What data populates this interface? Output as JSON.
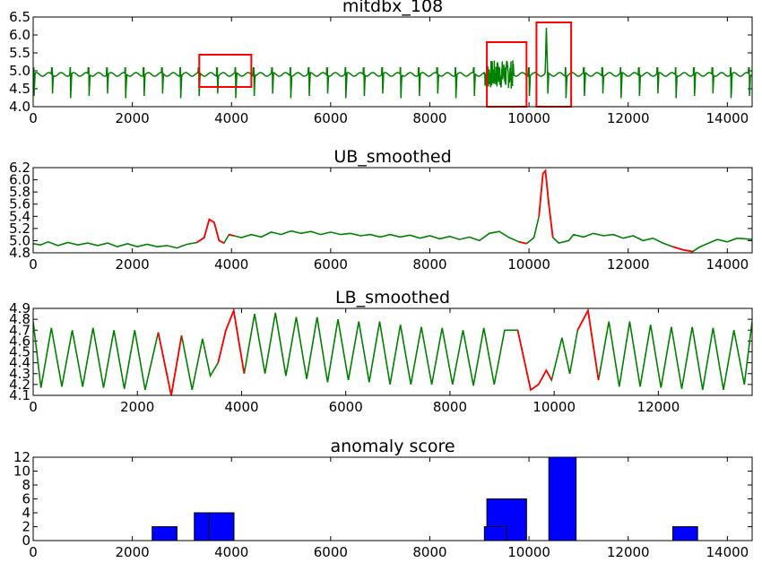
{
  "chart_data": [
    {
      "type": "line",
      "title": "mitdbx_108",
      "xlim": [
        0,
        14500
      ],
      "ylim": [
        4.0,
        6.5
      ],
      "xticks": [
        0,
        2000,
        4000,
        6000,
        8000,
        10000,
        12000,
        14000
      ],
      "yticks": [
        4.0,
        4.5,
        5.0,
        5.5,
        6.0,
        6.5
      ],
      "series": [
        {
          "color": "#008000",
          "baseline": 4.9,
          "beat_period": 370,
          "beat_peak": 5.08,
          "beat_trough": 4.2,
          "noise_region": [
            9100,
            9700
          ],
          "spike": {
            "x": 10350,
            "y": 6.2
          }
        }
      ],
      "annotations": [
        {
          "shape": "rect",
          "color": "#ff0000",
          "x": [
            3350,
            4400
          ],
          "y": [
            4.55,
            5.45
          ]
        },
        {
          "shape": "rect",
          "color": "#ff0000",
          "x": [
            9150,
            9950
          ],
          "y": [
            4.0,
            5.8
          ]
        },
        {
          "shape": "rect",
          "color": "#ff0000",
          "x": [
            10150,
            10850
          ],
          "y": [
            4.0,
            6.35
          ]
        }
      ]
    },
    {
      "type": "line",
      "title": "UB_smoothed",
      "xlim": [
        0,
        14500
      ],
      "ylim": [
        4.8,
        6.2
      ],
      "xticks": [
        0,
        2000,
        4000,
        6000,
        8000,
        10000,
        12000,
        14000
      ],
      "yticks": [
        4.8,
        5.0,
        5.2,
        5.4,
        5.6,
        5.8,
        6.0,
        6.2
      ],
      "points": [
        [
          0,
          4.95
        ],
        [
          150,
          4.93
        ],
        [
          300,
          4.98
        ],
        [
          500,
          4.92
        ],
        [
          700,
          4.97
        ],
        [
          900,
          4.93
        ],
        [
          1100,
          4.96
        ],
        [
          1300,
          4.92
        ],
        [
          1500,
          4.96
        ],
        [
          1700,
          4.9
        ],
        [
          1900,
          4.95
        ],
        [
          2100,
          4.9
        ],
        [
          2300,
          4.94
        ],
        [
          2500,
          4.9
        ],
        [
          2700,
          4.92
        ],
        [
          2900,
          4.88
        ],
        [
          3100,
          4.94
        ],
        [
          3300,
          4.97
        ],
        [
          3450,
          5.05
        ],
        [
          3550,
          5.35
        ],
        [
          3650,
          5.3
        ],
        [
          3750,
          5.0
        ],
        [
          3850,
          4.96
        ],
        [
          3950,
          5.1
        ],
        [
          4050,
          5.08
        ],
        [
          4200,
          5.05
        ],
        [
          4400,
          5.1
        ],
        [
          4600,
          5.06
        ],
        [
          4800,
          5.14
        ],
        [
          5000,
          5.1
        ],
        [
          5200,
          5.16
        ],
        [
          5400,
          5.12
        ],
        [
          5600,
          5.15
        ],
        [
          5800,
          5.1
        ],
        [
          6000,
          5.14
        ],
        [
          6200,
          5.1
        ],
        [
          6400,
          5.12
        ],
        [
          6600,
          5.08
        ],
        [
          6800,
          5.1
        ],
        [
          7000,
          5.06
        ],
        [
          7200,
          5.1
        ],
        [
          7400,
          5.06
        ],
        [
          7600,
          5.09
        ],
        [
          7800,
          5.04
        ],
        [
          8000,
          5.08
        ],
        [
          8200,
          5.03
        ],
        [
          8400,
          5.07
        ],
        [
          8600,
          5.02
        ],
        [
          8800,
          5.06
        ],
        [
          9000,
          5.0
        ],
        [
          9200,
          5.12
        ],
        [
          9400,
          5.15
        ],
        [
          9600,
          5.05
        ],
        [
          9800,
          4.98
        ],
        [
          9950,
          4.95
        ],
        [
          10100,
          5.05
        ],
        [
          10200,
          5.4
        ],
        [
          10280,
          6.1
        ],
        [
          10330,
          6.15
        ],
        [
          10400,
          5.6
        ],
        [
          10480,
          5.05
        ],
        [
          10600,
          4.96
        ],
        [
          10800,
          5.0
        ],
        [
          10900,
          5.1
        ],
        [
          11100,
          5.06
        ],
        [
          11300,
          5.12
        ],
        [
          11500,
          5.08
        ],
        [
          11700,
          5.1
        ],
        [
          11900,
          5.04
        ],
        [
          12100,
          5.08
        ],
        [
          12300,
          5.0
        ],
        [
          12500,
          5.04
        ],
        [
          12700,
          4.96
        ],
        [
          12900,
          4.9
        ],
        [
          13100,
          4.85
        ],
        [
          13300,
          4.82
        ],
        [
          13450,
          4.9
        ],
        [
          13600,
          4.95
        ],
        [
          13800,
          5.02
        ],
        [
          14000,
          4.98
        ],
        [
          14200,
          5.04
        ],
        [
          14500,
          5.02
        ]
      ],
      "highlight_ranges": [
        [
          3300,
          3900
        ],
        [
          3900,
          4100
        ],
        [
          9750,
          10000
        ],
        [
          10150,
          10550
        ],
        [
          12900,
          13400
        ]
      ],
      "colors": {
        "normal": "#008000",
        "anomaly": "#ff0000"
      }
    },
    {
      "type": "line",
      "title": "LB_smoothed",
      "xlim": [
        0,
        13800
      ],
      "ylim": [
        4.1,
        4.9
      ],
      "xticks": [
        0,
        2000,
        4000,
        6000,
        8000,
        10000,
        12000
      ],
      "yticks": [
        4.1,
        4.2,
        4.3,
        4.4,
        4.5,
        4.6,
        4.7,
        4.8,
        4.9
      ],
      "points": [
        [
          0,
          4.78
        ],
        [
          150,
          4.17
        ],
        [
          350,
          4.72
        ],
        [
          550,
          4.18
        ],
        [
          750,
          4.7
        ],
        [
          950,
          4.18
        ],
        [
          1150,
          4.72
        ],
        [
          1350,
          4.17
        ],
        [
          1550,
          4.7
        ],
        [
          1750,
          4.16
        ],
        [
          1950,
          4.7
        ],
        [
          2150,
          4.15
        ],
        [
          2400,
          4.68
        ],
        [
          2650,
          4.1
        ],
        [
          2850,
          4.65
        ],
        [
          3050,
          4.15
        ],
        [
          3250,
          4.62
        ],
        [
          3400,
          4.28
        ],
        [
          3550,
          4.4
        ],
        [
          3700,
          4.7
        ],
        [
          3850,
          4.88
        ],
        [
          4050,
          4.3
        ],
        [
          4250,
          4.85
        ],
        [
          4450,
          4.3
        ],
        [
          4650,
          4.86
        ],
        [
          4850,
          4.28
        ],
        [
          5050,
          4.82
        ],
        [
          5250,
          4.25
        ],
        [
          5450,
          4.82
        ],
        [
          5650,
          4.22
        ],
        [
          5850,
          4.8
        ],
        [
          6050,
          4.24
        ],
        [
          6250,
          4.78
        ],
        [
          6450,
          4.22
        ],
        [
          6650,
          4.78
        ],
        [
          6850,
          4.2
        ],
        [
          7050,
          4.75
        ],
        [
          7250,
          4.2
        ],
        [
          7450,
          4.73
        ],
        [
          7650,
          4.2
        ],
        [
          7850,
          4.72
        ],
        [
          8050,
          4.2
        ],
        [
          8250,
          4.7
        ],
        [
          8450,
          4.19
        ],
        [
          8650,
          4.72
        ],
        [
          8850,
          4.2
        ],
        [
          9050,
          4.7
        ],
        [
          9300,
          4.7
        ],
        [
          9550,
          4.15
        ],
        [
          9700,
          4.2
        ],
        [
          9850,
          4.33
        ],
        [
          9950,
          4.24
        ],
        [
          10150,
          4.63
        ],
        [
          10300,
          4.3
        ],
        [
          10450,
          4.7
        ],
        [
          10650,
          4.88
        ],
        [
          10850,
          4.24
        ],
        [
          11050,
          4.78
        ],
        [
          11250,
          4.18
        ],
        [
          11450,
          4.78
        ],
        [
          11650,
          4.18
        ],
        [
          11850,
          4.75
        ],
        [
          12050,
          4.17
        ],
        [
          12250,
          4.73
        ],
        [
          12450,
          4.16
        ],
        [
          12650,
          4.73
        ],
        [
          12850,
          4.15
        ],
        [
          13050,
          4.72
        ],
        [
          13250,
          4.15
        ],
        [
          13450,
          4.7
        ],
        [
          13650,
          4.2
        ],
        [
          13800,
          4.78
        ]
      ],
      "highlight_ranges": [
        [
          2400,
          2950
        ],
        [
          3550,
          4050
        ],
        [
          9150,
          10000
        ],
        [
          10400,
          10900
        ]
      ],
      "colors": {
        "normal": "#008000",
        "anomaly": "#ff0000"
      }
    },
    {
      "type": "bar",
      "title": "anomaly score",
      "xlim": [
        0,
        14500
      ],
      "ylim": [
        0,
        12
      ],
      "xticks": [
        0,
        2000,
        4000,
        6000,
        8000,
        10000,
        12000,
        14000
      ],
      "yticks": [
        0,
        2,
        4,
        6,
        8,
        10,
        12
      ],
      "bars": [
        {
          "x0": 2400,
          "x1": 2900,
          "value": 2
        },
        {
          "x0": 3250,
          "x1": 3750,
          "value": 4
        },
        {
          "x0": 3550,
          "x1": 4050,
          "value": 4
        },
        {
          "x0": 9150,
          "x1": 9950,
          "value": 6
        },
        {
          "x0": 9100,
          "x1": 9550,
          "value": 2
        },
        {
          "x0": 10400,
          "x1": 10950,
          "value": 12
        },
        {
          "x0": 12900,
          "x1": 13400,
          "value": 2
        }
      ],
      "color": "#0000ff"
    }
  ]
}
